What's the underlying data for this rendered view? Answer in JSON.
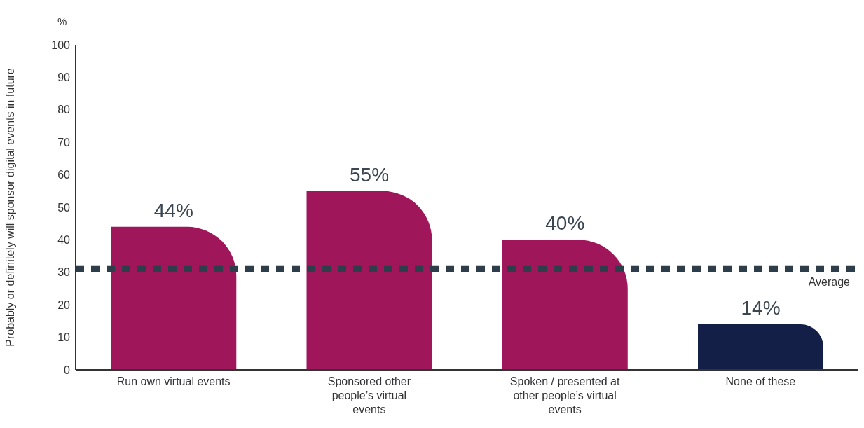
{
  "chart_data": {
    "type": "bar",
    "ylabel": "Probably or definitely will sponsor digital events in future",
    "annotations": [
      "%"
    ],
    "categories": [
      "Run own virtual events",
      "Sponsored other people’s virtual events",
      "Spoken / presented at other people’s virtual events",
      "None of these"
    ],
    "values": [
      44,
      55,
      40,
      14
    ],
    "value_labels": [
      "44%",
      "55%",
      "40%",
      "14%"
    ],
    "colors": [
      "#a0165a",
      "#a0165a",
      "#a0165a",
      "#141f48"
    ],
    "ylim": [
      0,
      100
    ],
    "yticks": [
      0,
      10,
      20,
      30,
      40,
      50,
      60,
      70,
      80,
      90,
      100
    ],
    "grid": false,
    "legend": false,
    "ref_lines": [
      {
        "axis": "y",
        "value": 31,
        "label": "Average",
        "color": "#2d3e4a",
        "line_style": "dashed"
      }
    ]
  }
}
